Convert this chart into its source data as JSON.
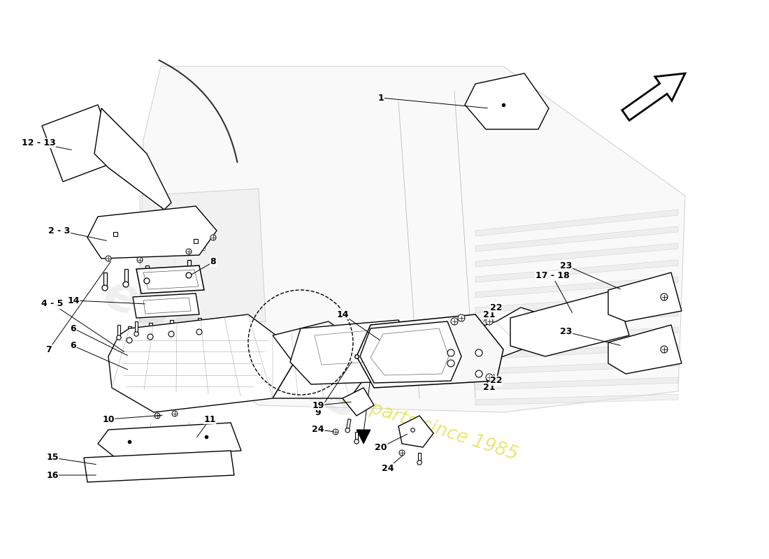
{
  "bg_color": "#ffffff",
  "line_color": "#000000",
  "gray_line": "#888888",
  "light_gray": "#cccccc",
  "watermark_color1": "#cccccc",
  "watermark_color2": "#d4d400",
  "fig_width": 11.0,
  "fig_height": 8.0,
  "dpi": 100
}
